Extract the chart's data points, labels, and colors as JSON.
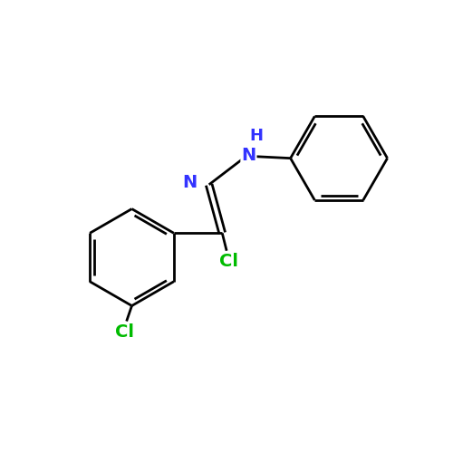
{
  "background_color": "#ffffff",
  "bond_color": "#000000",
  "bond_width": 2.0,
  "atom_colors": {
    "N": "#3333ff",
    "Cl": "#00bb00",
    "H": "#3333ff"
  },
  "font_size": 13,
  "fig_size": [
    5.0,
    5.0
  ],
  "dpi": 100,
  "xlim": [
    0,
    10
  ],
  "ylim": [
    0,
    10
  ]
}
